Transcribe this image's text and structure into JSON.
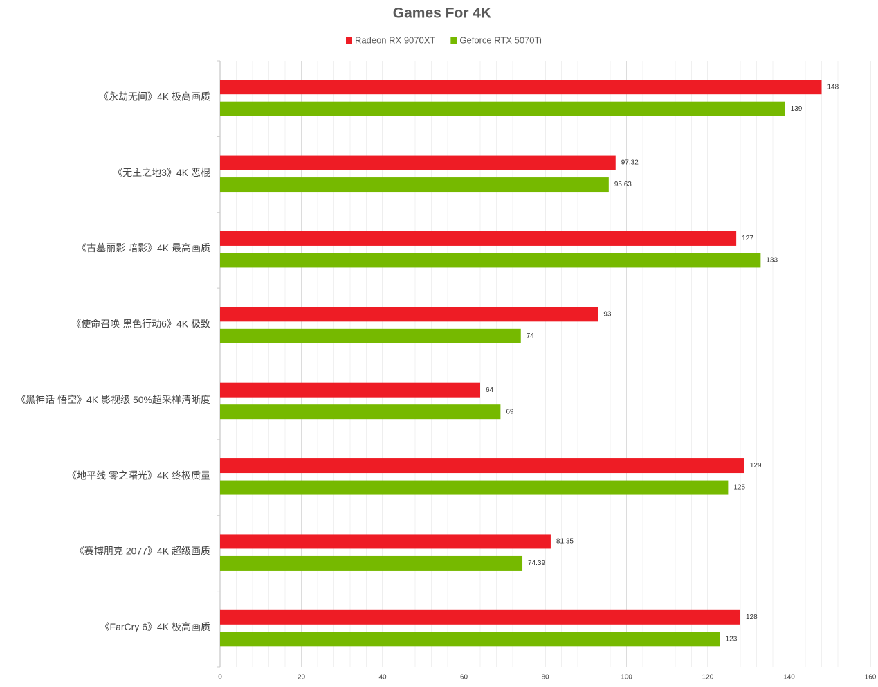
{
  "chart_data": {
    "type": "hbar",
    "title": "Games For 4K",
    "categories": [
      "《永劫无间》4K 极高画质",
      "《无主之地3》4K 恶棍",
      "《古墓丽影 暗影》4K 最高画质",
      "《使命召唤 黑色行动6》4K 极致",
      "《黑神话 悟空》4K 影视级 50%超采样清晰度",
      "《地平线 零之曙光》4K 终极质量",
      "《赛博朋克 2077》4K 超级画质",
      "《FarCry 6》4K 极高画质"
    ],
    "series": [
      {
        "name": "Radeon RX 9070XT",
        "color": "#ee1c25",
        "values": [
          148,
          97.32,
          127,
          93,
          64,
          129,
          81.35,
          128
        ]
      },
      {
        "name": "Geforce RTX 5070Ti",
        "color": "#76b900",
        "values": [
          139,
          95.63,
          133,
          74,
          69,
          125,
          74.39,
          123
        ]
      }
    ],
    "xlim": [
      0,
      160
    ],
    "xticks": [
      0,
      20,
      40,
      60,
      80,
      100,
      120,
      140,
      160
    ],
    "x_minor_ticks": [
      4,
      8,
      12,
      16,
      24,
      28,
      32,
      36,
      44,
      48,
      52,
      56,
      64,
      68,
      72,
      76,
      84,
      88,
      92,
      96,
      104,
      108,
      112,
      116,
      124,
      128,
      132,
      136,
      144,
      148,
      152,
      156
    ],
    "grid": true,
    "legend": "top"
  }
}
